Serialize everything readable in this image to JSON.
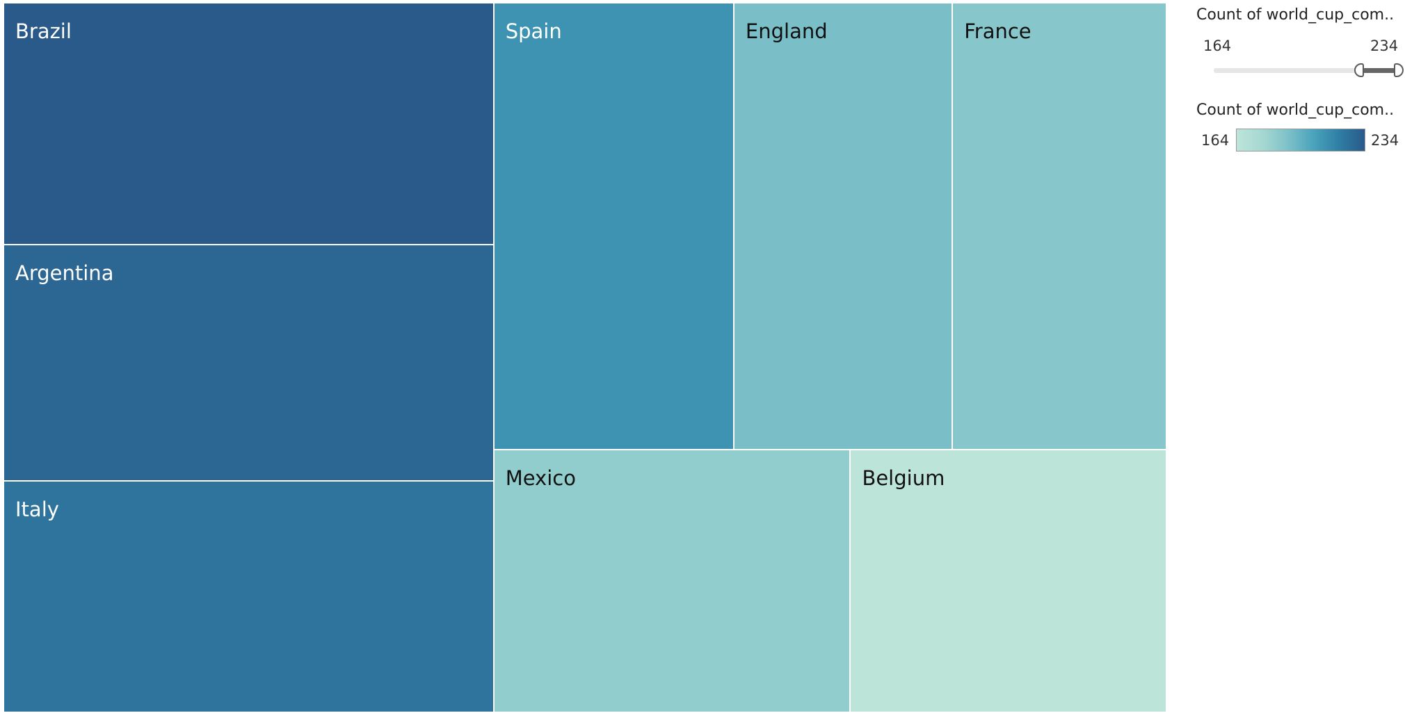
{
  "chart_data": {
    "type": "treemap",
    "measure_min": 164,
    "measure_max": 234,
    "color_ramp": [
      "#bde4d9",
      "#a6d8d1",
      "#7ec1c9",
      "#4aa3bb",
      "#2f7ea5",
      "#2a5a8a"
    ],
    "items": [
      {
        "label": "Brazil",
        "value": 234
      },
      {
        "label": "Argentina",
        "value": 229
      },
      {
        "label": "Italy",
        "value": 224
      },
      {
        "label": "Spain",
        "value": 212
      },
      {
        "label": "England",
        "value": 193
      },
      {
        "label": "France",
        "value": 189
      },
      {
        "label": "Mexico",
        "value": 185
      },
      {
        "label": "Belgium",
        "value": 164
      }
    ]
  },
  "legend": {
    "filter_title": "Count of world_cup_com..",
    "filter_min_label": "164",
    "filter_max_label": "234",
    "filter_selected_min": 219,
    "filter_selected_max": 234,
    "color_title": "Count of world_cup_com..",
    "color_min_label": "164",
    "color_max_label": "234"
  }
}
